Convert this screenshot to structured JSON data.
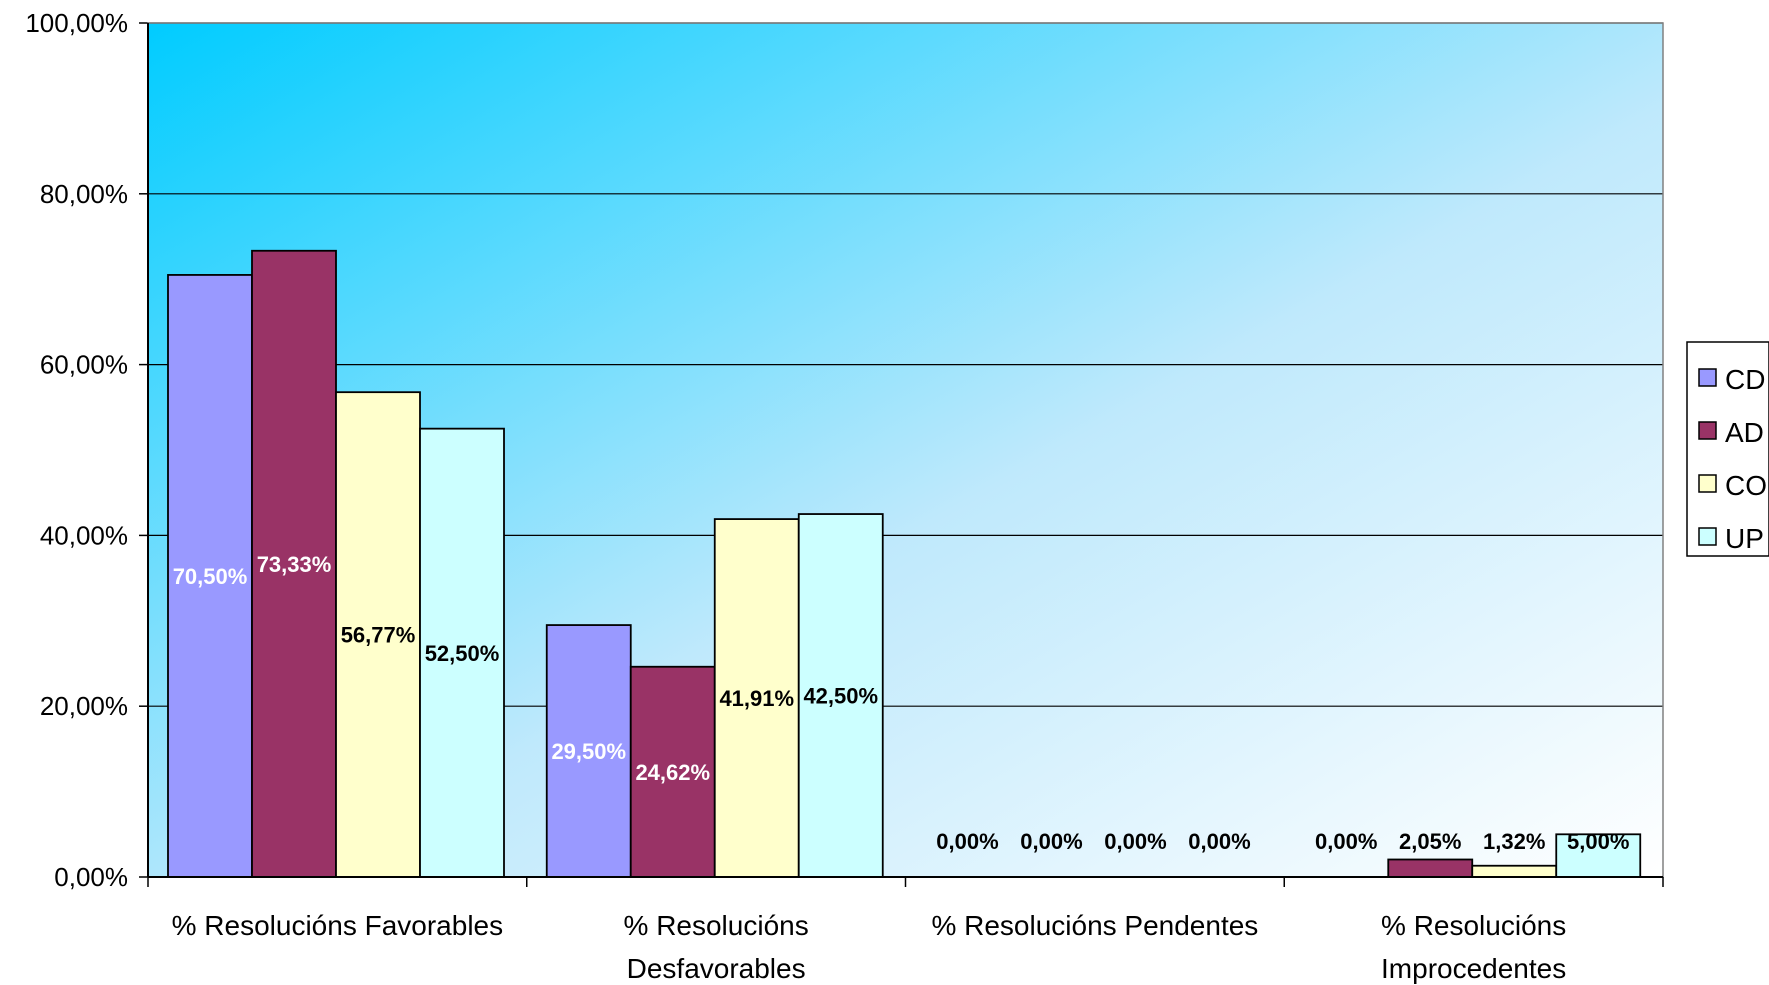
{
  "chart_data": {
    "type": "bar",
    "categories": [
      [
        "% Resolucións Favorables"
      ],
      [
        "% Resolucións",
        "Desfavorables"
      ],
      [
        "% Resolucións Pendentes"
      ],
      [
        "% Resolucións",
        "Improcedentes"
      ]
    ],
    "series": [
      {
        "name": "CD",
        "color": "#9999FF",
        "values": [
          70.5,
          29.5,
          0.0,
          0.0
        ],
        "labels": [
          "70,50%",
          "29,50%",
          "0,00%",
          "0,00%"
        ],
        "label_color": "#FFFFFF"
      },
      {
        "name": "AD",
        "color": "#993366",
        "values": [
          73.33,
          24.62,
          0.0,
          2.05
        ],
        "labels": [
          "73,33%",
          "24,62%",
          "0,00%",
          "2,05%"
        ],
        "label_color": "#FFFFFF"
      },
      {
        "name": "CO",
        "color": "#FFFFCC",
        "values": [
          56.77,
          41.91,
          0.0,
          1.32
        ],
        "labels": [
          "56,77%",
          "41,91%",
          "0,00%",
          "1,32%"
        ],
        "label_color": "#000000"
      },
      {
        "name": "UP",
        "color": "#CCFFFF",
        "values": [
          52.5,
          42.5,
          0.0,
          5.0
        ],
        "labels": [
          "52,50%",
          "42,50%",
          "0,00%",
          "5,00%"
        ],
        "label_color": "#000000"
      }
    ],
    "y_ticks": [
      "0,00%",
      "20,00%",
      "40,00%",
      "60,00%",
      "80,00%",
      "100,00%"
    ],
    "ylim": [
      0,
      100
    ],
    "grid": true,
    "legend_position": "right",
    "background": "gradient-light-blue"
  }
}
